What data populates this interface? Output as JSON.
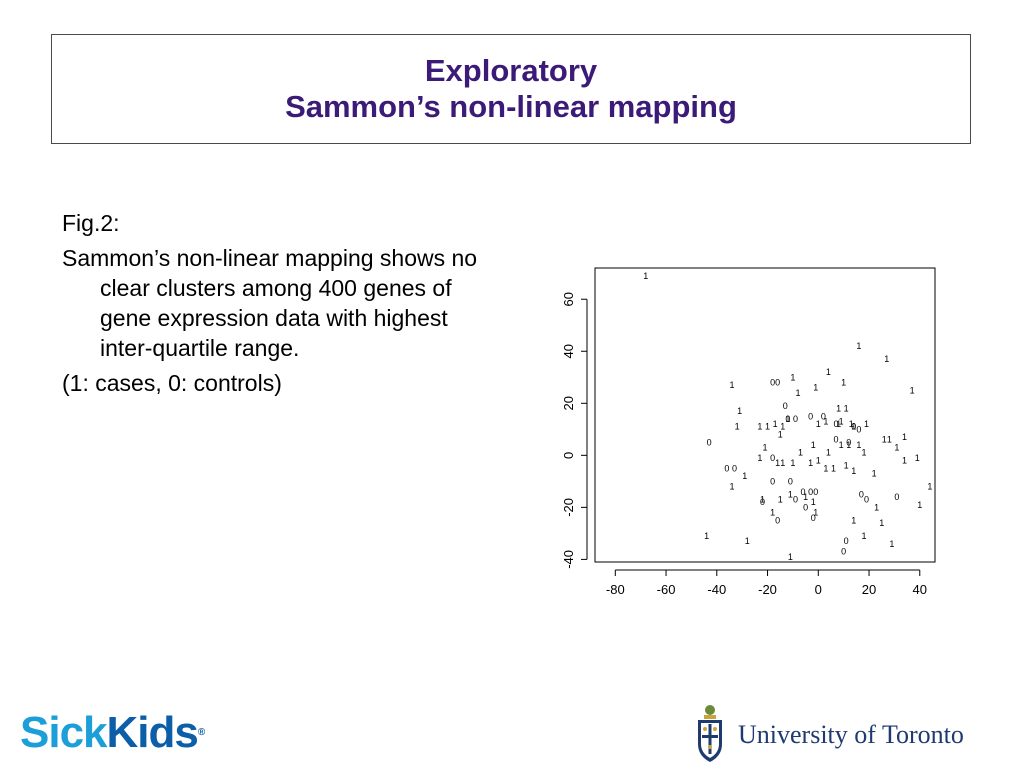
{
  "slide": {
    "title_line1": "Exploratory",
    "title_line2": "Sammon’s non-linear mapping",
    "paragraphs": [
      "Fig.2:",
      "Sammon’s non-linear mapping shows no clear clusters among 400 genes of gene expression data with highest inter-quartile range.",
      "(1: cases, 0: controls)"
    ]
  },
  "logos": {
    "left_part1": "Sick",
    "left_part2": "Kids",
    "left_mark": "®",
    "right_text": "University of Toronto"
  },
  "colors": {
    "title": "#3c1a78",
    "sickkids_light": "#1c9fd8",
    "sickkids_dark": "#0d5ea8",
    "uoft": "#1e3a6e"
  },
  "chart_data": {
    "type": "scatter",
    "title": "",
    "xlabel": "",
    "ylabel": "",
    "xlim": [
      -88,
      46
    ],
    "ylim": [
      -41,
      72
    ],
    "xticks": [
      -80,
      -60,
      -40,
      -20,
      0,
      20,
      40
    ],
    "yticks": [
      -40,
      -20,
      0,
      20,
      40,
      60
    ],
    "x_tick_labels": [
      "-80",
      "-60",
      "-40",
      "-20",
      "0",
      "20",
      "40"
    ],
    "y_tick_labels": [
      "-40",
      "-20",
      "0",
      "20",
      "40",
      "60"
    ],
    "y_tick_labels_rotated": true,
    "grid": false,
    "legend": "none",
    "marker": "text labels (1 = case, 0 = control)",
    "series": [
      {
        "name": "1",
        "points": [
          [
            -68,
            69
          ],
          [
            16,
            42
          ],
          [
            27,
            37
          ],
          [
            4,
            32
          ],
          [
            -10,
            30
          ],
          [
            -34,
            27
          ],
          [
            -1,
            26
          ],
          [
            10,
            28
          ],
          [
            37,
            25
          ],
          [
            -8,
            24
          ],
          [
            -31,
            17
          ],
          [
            8,
            18
          ],
          [
            11,
            18
          ],
          [
            -32,
            11
          ],
          [
            -23,
            11
          ],
          [
            -20,
            11
          ],
          [
            -17,
            12
          ],
          [
            -14,
            11
          ],
          [
            -12,
            14
          ],
          [
            0,
            12
          ],
          [
            3,
            13
          ],
          [
            8,
            12
          ],
          [
            9,
            13
          ],
          [
            13,
            12
          ],
          [
            19,
            12
          ],
          [
            14,
            11
          ],
          [
            26,
            6
          ],
          [
            28,
            6
          ],
          [
            31,
            3
          ],
          [
            34,
            7
          ],
          [
            -15,
            8
          ],
          [
            -21,
            3
          ],
          [
            -7,
            1
          ],
          [
            -2,
            4
          ],
          [
            4,
            1
          ],
          [
            9,
            4
          ],
          [
            12,
            4
          ],
          [
            16,
            4
          ],
          [
            18,
            1
          ],
          [
            -23,
            -1
          ],
          [
            -16,
            -3
          ],
          [
            -14,
            -3
          ],
          [
            -10,
            -3
          ],
          [
            -3,
            -3
          ],
          [
            0,
            -2
          ],
          [
            3,
            -5
          ],
          [
            6,
            -5
          ],
          [
            11,
            -4
          ],
          [
            14,
            -6
          ],
          [
            22,
            -7
          ],
          [
            -29,
            -8
          ],
          [
            -34,
            -12
          ],
          [
            -22,
            -17
          ],
          [
            -15,
            -17
          ],
          [
            -18,
            -22
          ],
          [
            -11,
            -15
          ],
          [
            -5,
            -16
          ],
          [
            -2,
            -18
          ],
          [
            -1,
            -22
          ],
          [
            14,
            -25
          ],
          [
            23,
            -20
          ],
          [
            25,
            -26
          ],
          [
            -44,
            -31
          ],
          [
            -28,
            -33
          ],
          [
            -11,
            -39
          ],
          [
            18,
            -31
          ],
          [
            29,
            -34
          ],
          [
            40,
            -19
          ],
          [
            44,
            -12
          ],
          [
            34,
            -2
          ],
          [
            39,
            -1
          ]
        ]
      },
      {
        "name": "0",
        "points": [
          [
            -18,
            28
          ],
          [
            -16,
            28
          ],
          [
            -13,
            19
          ],
          [
            -12,
            14
          ],
          [
            -9,
            14
          ],
          [
            -3,
            15
          ],
          [
            2,
            15
          ],
          [
            7,
            12
          ],
          [
            14,
            11
          ],
          [
            16,
            10
          ],
          [
            -43,
            5
          ],
          [
            -18,
            -1
          ],
          [
            7,
            6
          ],
          [
            12,
            5
          ],
          [
            -36,
            -5
          ],
          [
            -33,
            -5
          ],
          [
            -18,
            -10
          ],
          [
            -11,
            -10
          ],
          [
            -6,
            -14
          ],
          [
            -3,
            -14
          ],
          [
            -1,
            -14
          ],
          [
            -22,
            -18
          ],
          [
            -9,
            -17
          ],
          [
            -5,
            -20
          ],
          [
            17,
            -15
          ],
          [
            19,
            -17
          ],
          [
            -16,
            -25
          ],
          [
            -2,
            -24
          ],
          [
            11,
            -33
          ],
          [
            10,
            -37
          ],
          [
            31,
            -16
          ]
        ]
      }
    ]
  }
}
